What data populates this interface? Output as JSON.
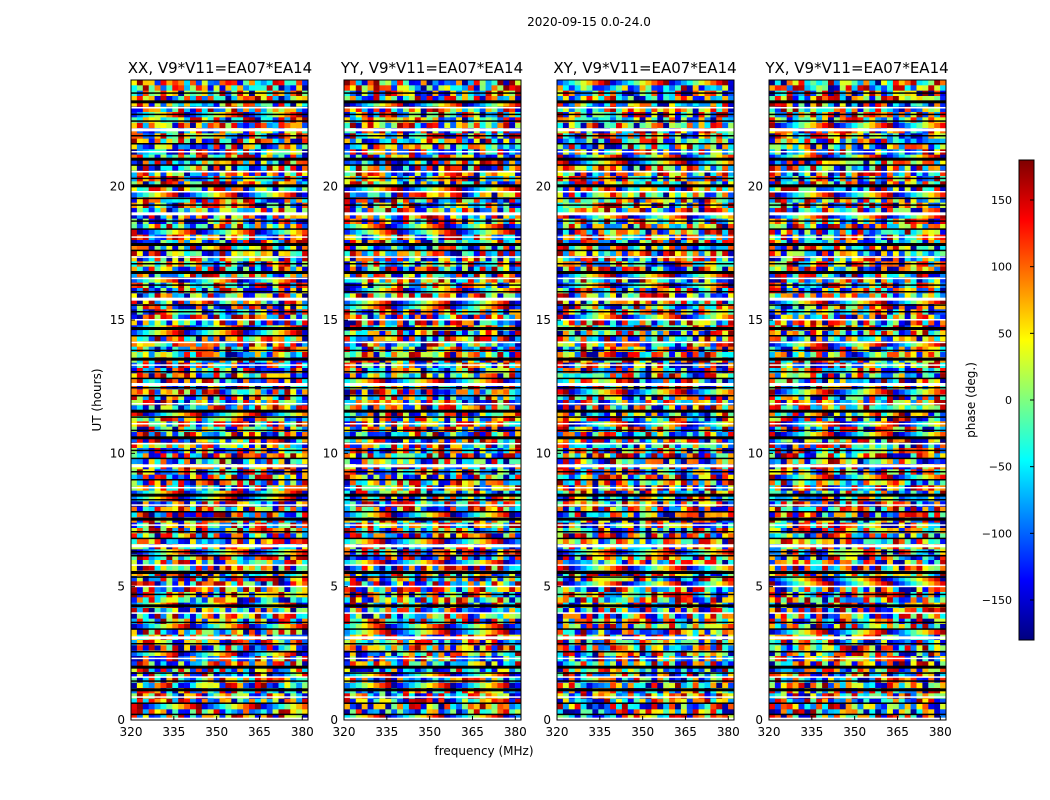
{
  "figure_title": "2020-09-15 0.0-24.0",
  "chart_data": {
    "type": "heatmap",
    "title": "2020-09-15 0.0-24.0",
    "xlabel": "frequency (MHz)",
    "ylabel": "UT (hours)",
    "xlim": [
      320,
      382
    ],
    "ylim": [
      0,
      24
    ],
    "xticks": [
      320,
      335,
      350,
      365,
      380
    ],
    "yticks": [
      0,
      5,
      10,
      15,
      20
    ],
    "panels": [
      {
        "id": "xx",
        "title": "XX, V9*V11=EA07*EA14",
        "bias": 0.05
      },
      {
        "id": "yy",
        "title": "YY, V9*V11=EA07*EA14",
        "bias": 0.18
      },
      {
        "id": "xy",
        "title": "XY, V9*V11=EA07*EA14",
        "bias": 0.0
      },
      {
        "id": "yx",
        "title": "YX, V9*V11=EA07*EA14",
        "bias": -0.05
      }
    ],
    "colorbar": {
      "label": "phase (deg.)",
      "range": [
        -180,
        180
      ],
      "ticks": [
        150,
        100,
        50,
        0,
        -50,
        -100,
        -150
      ],
      "tick_labels": [
        "150",
        "100",
        "50",
        "0",
        "−50",
        "−100",
        "−150"
      ],
      "colormap": "jet"
    },
    "flagged_time_rows": [
      0.05,
      0.2,
      0.62,
      0.85,
      1.15,
      1.45,
      1.6,
      1.75,
      2.0,
      2.3,
      2.55,
      2.85,
      3.1,
      3.4,
      3.65,
      4.0,
      4.3,
      4.7,
      5.0,
      5.35,
      5.55,
      5.8,
      6.15,
      6.3,
      6.55,
      6.8,
      7.05,
      7.3,
      7.55,
      7.8,
      8.05,
      8.25,
      8.45,
      8.7,
      9.0,
      9.3,
      9.55,
      9.8,
      10.1,
      10.35,
      10.6,
      10.85,
      11.1,
      11.35,
      11.6,
      11.85,
      12.15,
      12.45,
      12.6,
      12.8,
      13.05,
      13.3,
      13.55,
      13.85,
      14.15,
      14.4,
      14.7,
      15.0,
      15.3,
      15.55,
      15.8,
      16.05,
      16.3,
      16.55,
      16.8,
      17.1,
      17.35,
      17.6,
      17.85,
      18.1,
      18.4,
      18.7,
      19.0,
      19.3,
      19.55,
      19.8,
      20.05,
      20.3,
      20.55,
      20.8,
      21.05,
      21.3,
      21.6,
      21.9,
      22.15,
      22.45,
      22.7,
      22.95,
      23.2,
      23.5
    ],
    "flagged_row_color": "#000000",
    "gap_row_color": "#ffffff"
  }
}
